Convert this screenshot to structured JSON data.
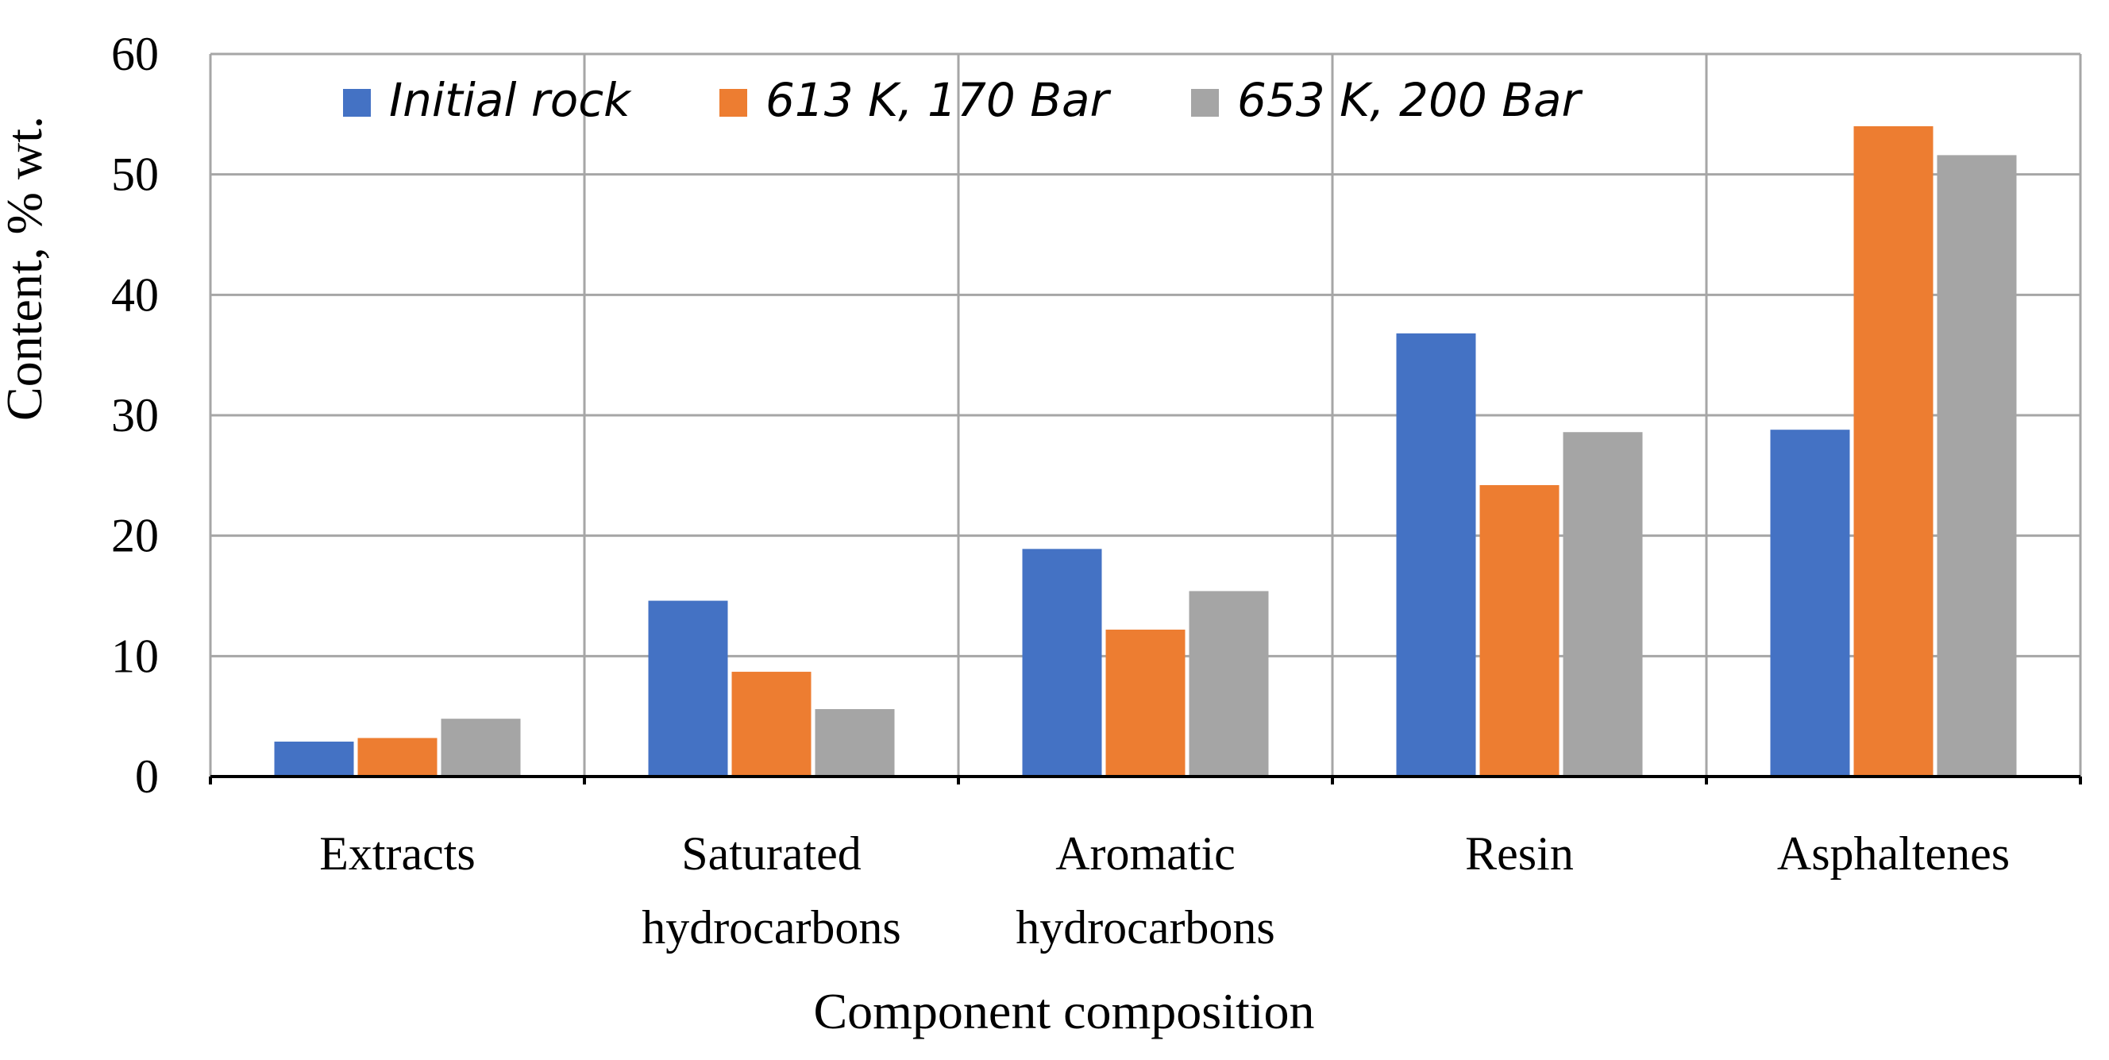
{
  "chart_data": {
    "type": "bar",
    "title": "",
    "xlabel": "Component composition",
    "ylabel": "Content, % wt.",
    "ylim": [
      0,
      60
    ],
    "yticks": [
      0,
      10,
      20,
      30,
      40,
      50,
      60
    ],
    "grid": true,
    "legend_position": "top",
    "categories": [
      [
        "Extracts"
      ],
      [
        "Saturated",
        "hydrocarbons"
      ],
      [
        "Aromatic",
        "hydrocarbons"
      ],
      [
        "Resin"
      ],
      [
        "Asphaltenes"
      ]
    ],
    "series": [
      {
        "name": "Initial rock",
        "color": "#4472C4",
        "values": [
          2.9,
          14.6,
          18.9,
          36.8,
          28.8
        ]
      },
      {
        "name": "613 K, 170 Bar",
        "color": "#ED7D31",
        "values": [
          3.2,
          8.7,
          12.2,
          24.2,
          54.0
        ]
      },
      {
        "name": "653 K, 200 Bar",
        "color": "#A5A5A5",
        "values": [
          4.8,
          5.6,
          15.4,
          28.6,
          51.6
        ]
      }
    ]
  }
}
